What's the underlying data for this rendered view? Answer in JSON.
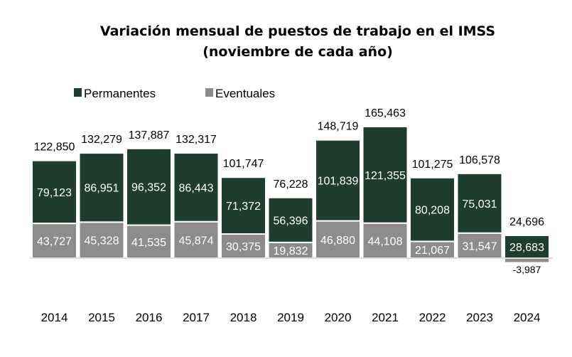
{
  "chart_data": {
    "type": "bar",
    "stacked": true,
    "title_line1": "Variación mensual de puestos de trabajo en el IMSS",
    "title_line2": "(noviembre de cada año)",
    "categories": [
      "2014",
      "2015",
      "2016",
      "2017",
      "2018",
      "2019",
      "2020",
      "2021",
      "2022",
      "2023",
      "2024"
    ],
    "series": [
      {
        "name": "Eventuales",
        "color": "#8c8c8c",
        "values": [
          43727,
          45328,
          41535,
          45874,
          30375,
          19832,
          46880,
          44108,
          21067,
          31547,
          -3987
        ],
        "labels": [
          "43,727",
          "45,328",
          "41,535",
          "45,874",
          "30,375",
          "19,832",
          "46,880",
          "44,108",
          "21,067",
          "31,547",
          "-3,987"
        ]
      },
      {
        "name": "Permanentes",
        "color": "#1e3d2f",
        "values": [
          79123,
          86951,
          96352,
          86443,
          71372,
          56396,
          101839,
          121355,
          80208,
          75031,
          28683
        ],
        "labels": [
          "79,123",
          "86,951",
          "96,352",
          "86,443",
          "71,372",
          "56,396",
          "101,839",
          "121,355",
          "80,208",
          "75,031",
          "28,683"
        ]
      }
    ],
    "totals": [
      122850,
      132279,
      137887,
      132317,
      101747,
      76228,
      148719,
      165463,
      101275,
      106578,
      24696
    ],
    "total_labels": [
      "122,850",
      "132,279",
      "137,887",
      "132,317",
      "101,747",
      "76,228",
      "148,719",
      "165,463",
      "101,275",
      "106,578",
      "24,696"
    ],
    "legend": [
      "Permanentes",
      "Eventuales"
    ],
    "legend_position": "top-left",
    "ylim": [
      -4000,
      170000
    ],
    "grid": false
  }
}
